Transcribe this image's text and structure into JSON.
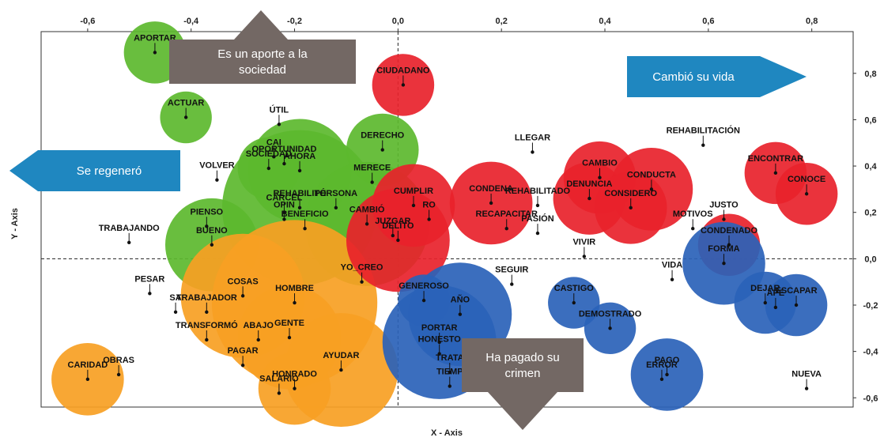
{
  "chart_data": {
    "type": "scatter",
    "title": "",
    "xlabel": "X - Axis",
    "ylabel": "Y - Axis",
    "xlim": [
      -0.69,
      0.88
    ],
    "ylim": [
      -0.64,
      0.98
    ],
    "x_ticks": [
      -0.6,
      -0.4,
      -0.2,
      0.0,
      0.2,
      0.4,
      0.6,
      0.8
    ],
    "x_tick_labels": [
      "-0,6",
      "-0,4",
      "-0,2",
      "0,0",
      "0,2",
      "0,4",
      "0,6",
      "0,8"
    ],
    "y_ticks": [
      0.8,
      0.6,
      0.4,
      0.2,
      0.0,
      -0.2,
      -0.4,
      -0.6
    ],
    "y_tick_labels": [
      "0,8",
      "0,6",
      "0,4",
      "0,2",
      "0,0",
      "-0,2",
      "-0,4",
      "-0,6"
    ],
    "x_axis_position": "top",
    "y_axis_position": "right",
    "reference_lines": "dashed at x=0 and y=0",
    "grid": false,
    "colors": {
      "green": "#5cb92e",
      "orange": "#f7a023",
      "red": "#e8222b",
      "blue": "#2a62b8",
      "callout_gray": "#736864",
      "callout_blue": "#1f87c0"
    },
    "bubbles": [
      {
        "x": -0.47,
        "y": 0.89,
        "r": 0.06,
        "color": "green",
        "label": "APORTAR"
      },
      {
        "x": -0.41,
        "y": 0.61,
        "r": 0.05,
        "color": "green",
        "label": "ACTUAR"
      },
      {
        "x": -0.03,
        "y": 0.47,
        "r": 0.07,
        "color": "green",
        "label": "DERECHO"
      },
      {
        "x": -0.19,
        "y": 0.38,
        "r": 0.1,
        "color": "green",
        "label": "AHORA"
      },
      {
        "x": -0.25,
        "y": 0.39,
        "r": 0.06,
        "color": "green",
        "label": "SOCIEDAD"
      },
      {
        "x": -0.19,
        "y": 0.22,
        "r": 0.15,
        "color": "green",
        "label": "REHABILITÓ"
      },
      {
        "x": -0.06,
        "y": 0.15,
        "r": 0.12,
        "color": "green",
        "label": "CAMBIÓ"
      },
      {
        "x": -0.36,
        "y": 0.06,
        "r": 0.09,
        "color": "green",
        "label": "BUENO"
      },
      {
        "x": -0.3,
        "y": -0.16,
        "r": 0.12,
        "color": "orange",
        "label": "COSAS"
      },
      {
        "x": -0.2,
        "y": -0.19,
        "r": 0.16,
        "color": "orange",
        "label": "HOMBRE"
      },
      {
        "x": -0.21,
        "y": -0.34,
        "r": 0.1,
        "color": "orange",
        "label": "GENTE"
      },
      {
        "x": -0.11,
        "y": -0.48,
        "r": 0.11,
        "color": "orange",
        "label": "AYUDAR"
      },
      {
        "x": -0.2,
        "y": -0.56,
        "r": 0.07,
        "color": "orange",
        "label": "HONRADO"
      },
      {
        "x": -0.6,
        "y": -0.52,
        "r": 0.07,
        "color": "orange",
        "label": "CARIDAD"
      },
      {
        "x": 0.01,
        "y": 0.75,
        "r": 0.06,
        "color": "red",
        "label": "CIUDADANO"
      },
      {
        "x": 0.03,
        "y": 0.23,
        "r": 0.08,
        "color": "red",
        "label": "CUMPLIR"
      },
      {
        "x": 0.0,
        "y": 0.08,
        "r": 0.1,
        "color": "red",
        "label": "DELITO"
      },
      {
        "x": 0.18,
        "y": 0.24,
        "r": 0.08,
        "color": "red",
        "label": "CONDENA"
      },
      {
        "x": 0.39,
        "y": 0.35,
        "r": 0.07,
        "color": "red",
        "label": "CAMBIO"
      },
      {
        "x": 0.37,
        "y": 0.26,
        "r": 0.07,
        "color": "red",
        "label": "DENUNCIA"
      },
      {
        "x": 0.49,
        "y": 0.3,
        "r": 0.08,
        "color": "red",
        "label": "CONDUCTA"
      },
      {
        "x": 0.45,
        "y": 0.22,
        "r": 0.07,
        "color": "red",
        "label": "CONSIDERO"
      },
      {
        "x": 0.73,
        "y": 0.37,
        "r": 0.06,
        "color": "red",
        "label": "ENCONTRAR"
      },
      {
        "x": 0.79,
        "y": 0.28,
        "r": 0.06,
        "color": "red",
        "label": "CONOCE"
      },
      {
        "x": 0.64,
        "y": 0.06,
        "r": 0.06,
        "color": "red",
        "label": "CONDENADO"
      },
      {
        "x": 0.63,
        "y": -0.02,
        "r": 0.08,
        "color": "blue",
        "label": "FORMA"
      },
      {
        "x": 0.12,
        "y": -0.24,
        "r": 0.1,
        "color": "blue",
        "label": "AÑO"
      },
      {
        "x": 0.05,
        "y": -0.18,
        "r": 0.05,
        "color": "blue",
        "label": "GENEROSO"
      },
      {
        "x": 0.08,
        "y": -0.36,
        "r": 0.11,
        "color": "blue",
        "label": "PORTAR"
      },
      {
        "x": 0.34,
        "y": -0.19,
        "r": 0.05,
        "color": "blue",
        "label": "CASTIGO"
      },
      {
        "x": 0.41,
        "y": -0.3,
        "r": 0.05,
        "color": "blue",
        "label": "DEMOSTRADO"
      },
      {
        "x": 0.52,
        "y": -0.5,
        "r": 0.07,
        "color": "blue",
        "label": "PAGO"
      },
      {
        "x": 0.71,
        "y": -0.19,
        "r": 0.06,
        "color": "blue",
        "label": "DEJAR"
      },
      {
        "x": 0.77,
        "y": -0.2,
        "r": 0.06,
        "color": "blue",
        "label": "ESCAPAR"
      }
    ],
    "points": [
      {
        "x": -0.23,
        "y": 0.58,
        "label": "ÚTIL"
      },
      {
        "x": -0.35,
        "y": 0.34,
        "label": "VOLVER"
      },
      {
        "x": -0.22,
        "y": 0.41,
        "label": "OPORTUNIDAD"
      },
      {
        "x": -0.24,
        "y": 0.44,
        "label": "CAI"
      },
      {
        "x": -0.22,
        "y": 0.2,
        "label": "CÁRCEL"
      },
      {
        "x": -0.22,
        "y": 0.17,
        "label": "OPIN"
      },
      {
        "x": -0.12,
        "y": 0.22,
        "label": "PERSONA"
      },
      {
        "x": -0.05,
        "y": 0.33,
        "label": "MERECE"
      },
      {
        "x": -0.18,
        "y": 0.13,
        "label": "BENEFICIO"
      },
      {
        "x": -0.37,
        "y": 0.14,
        "label": "PIENSO"
      },
      {
        "x": -0.52,
        "y": 0.07,
        "label": "TRABAJANDO"
      },
      {
        "x": -0.07,
        "y": -0.1,
        "label": "YO_CREO"
      },
      {
        "x": -0.01,
        "y": 0.1,
        "label": "JUZGAR"
      },
      {
        "x": 0.06,
        "y": 0.17,
        "label": "RO"
      },
      {
        "x": 0.21,
        "y": 0.13,
        "label": "RECAPACITAR"
      },
      {
        "x": 0.27,
        "y": 0.23,
        "label": "REHABILITADO"
      },
      {
        "x": 0.27,
        "y": 0.11,
        "label": "PASIÓN"
      },
      {
        "x": 0.26,
        "y": 0.46,
        "label": "LLEGAR"
      },
      {
        "x": 0.59,
        "y": 0.49,
        "label": "REHABILITACIÓN"
      },
      {
        "x": 0.57,
        "y": 0.13,
        "label": "MOTIVOS"
      },
      {
        "x": 0.63,
        "y": 0.17,
        "label": "JUSTO"
      },
      {
        "x": 0.36,
        "y": 0.01,
        "label": "VIVIR"
      },
      {
        "x": 0.53,
        "y": -0.09,
        "label": "VIDA"
      },
      {
        "x": 0.22,
        "y": -0.11,
        "label": "SEGUIR"
      },
      {
        "x": -0.48,
        "y": -0.15,
        "label": "PESAR"
      },
      {
        "x": -0.43,
        "y": -0.23,
        "label": "SA"
      },
      {
        "x": -0.37,
        "y": -0.23,
        "label": "TRABAJADOR"
      },
      {
        "x": -0.37,
        "y": -0.35,
        "label": "TRANSFORMÓ"
      },
      {
        "x": -0.27,
        "y": -0.35,
        "label": "ABAJO"
      },
      {
        "x": -0.3,
        "y": -0.46,
        "label": "PAGAR"
      },
      {
        "x": -0.54,
        "y": -0.5,
        "label": "OBRAS"
      },
      {
        "x": 0.1,
        "y": -0.49,
        "label": "TRATA"
      },
      {
        "x": 0.08,
        "y": -0.41,
        "label": "HONESTO"
      },
      {
        "x": 0.1,
        "y": -0.55,
        "label": "TIEMP"
      },
      {
        "x": 0.51,
        "y": -0.52,
        "label": "ERROR"
      },
      {
        "x": 0.73,
        "y": -0.21,
        "label": "APE"
      },
      {
        "x": 0.79,
        "y": -0.56,
        "label": "NUEVA"
      },
      {
        "x": -0.23,
        "y": -0.58,
        "label": "SALARIO"
      }
    ],
    "callouts": [
      {
        "id": "up",
        "text": "Es un aporte a la sociedad",
        "lines": [
          "Es un aporte a la",
          "sociedad"
        ],
        "color": "callout_gray",
        "direction": "up"
      },
      {
        "id": "right",
        "text": "Cambió su vida",
        "lines": [
          "Cambió su vida"
        ],
        "color": "callout_blue",
        "direction": "right"
      },
      {
        "id": "left",
        "text": "Se regeneró",
        "lines": [
          "Se regeneró"
        ],
        "color": "callout_blue",
        "direction": "left"
      },
      {
        "id": "down",
        "text": "Ha pagado su crimen",
        "lines": [
          "Ha pagado su",
          "crimen"
        ],
        "color": "callout_gray",
        "direction": "down"
      }
    ]
  }
}
